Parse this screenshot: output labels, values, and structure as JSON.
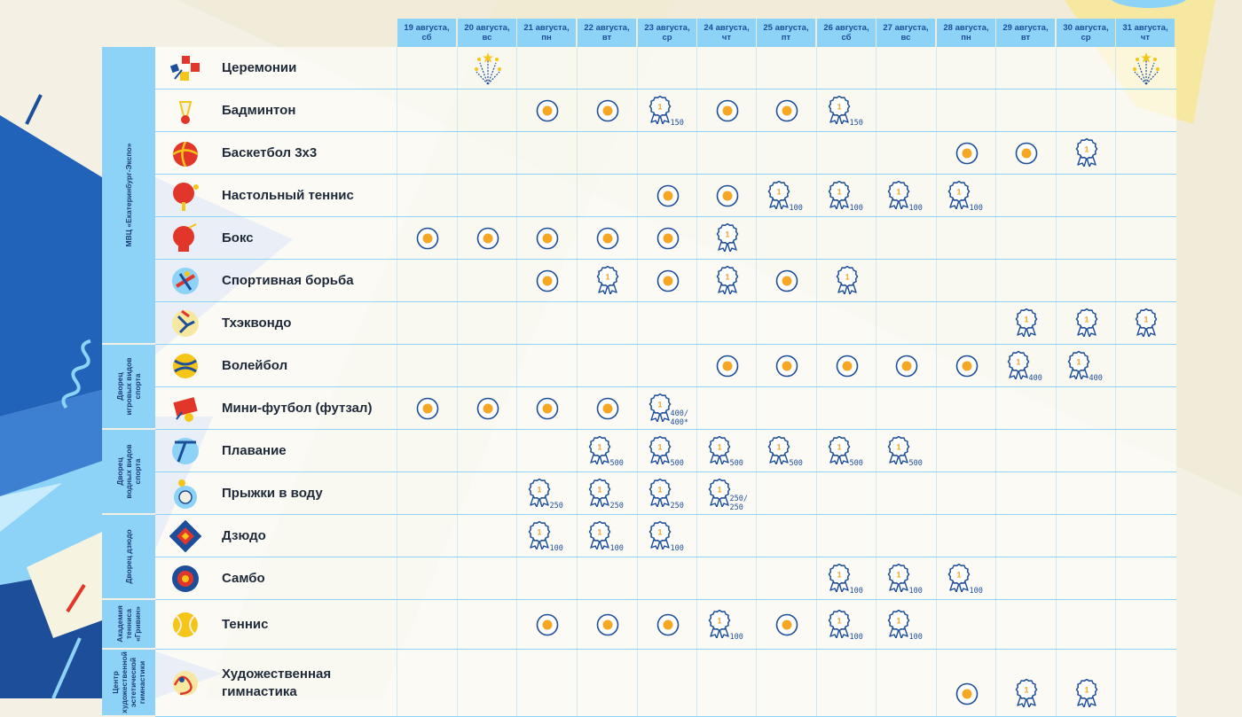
{
  "colors": {
    "header": "#8dd3f7",
    "dark_blue": "#1d4e99",
    "orange": "#f5a623",
    "text": "#1e2a3a"
  },
  "dates": [
    "19 августа,|сб",
    "20 августа,|вс",
    "21 августа,|пн",
    "22 августа,|вт",
    "23 августа,|ср",
    "24 августа,|чт",
    "25 августа,|пт",
    "26 августа,|сб",
    "27 августа,|вс",
    "28 августа,|пн",
    "29 августа,|вт",
    "30 августа,|ср",
    "31 августа,|чт"
  ],
  "venues": [
    {
      "name": "МВЦ «Екатеринбург-Экспо»",
      "lines": [
        "МВЦ «Екатеринбург-Экспо»"
      ],
      "rows": 7
    },
    {
      "name": "Дворец игровых видов спорта",
      "lines": [
        "Дворец",
        "игровых видов",
        "спорта"
      ],
      "rows": 2
    },
    {
      "name": "Дворец водных видов спорта",
      "lines": [
        "Дворец",
        "водных видов",
        "спорта"
      ],
      "rows": 2
    },
    {
      "name": "Дворец дзюдо",
      "lines": [
        "Дворец дзюдо"
      ],
      "rows": 2
    },
    {
      "name": "Академия тенниса «Гривин»",
      "lines": [
        "Академия",
        "тенниса",
        "«Гривин»"
      ],
      "rows": 1
    },
    {
      "name": "Центр художественной и эстетической гимнастики",
      "lines": [
        "Центр",
        "художественной",
        "эстетической",
        "гимнастики"
      ],
      "rows": 1
    }
  ],
  "sports": [
    {
      "name": "Церемонии",
      "icon": "ceremony-icon",
      "cells": [
        "",
        "c",
        "",
        "",
        "",
        "",
        "",
        "",
        "",
        "",
        "",
        "",
        "c"
      ]
    },
    {
      "name": "Бадминтон",
      "icon": "badminton-icon",
      "cells": [
        "",
        "",
        "d",
        "d",
        "m:150",
        "d",
        "d",
        "m:150",
        "",
        "",
        "",
        "",
        ""
      ]
    },
    {
      "name": "Баскетбол 3х3",
      "icon": "basketball-icon",
      "cells": [
        "",
        "",
        "",
        "",
        "",
        "",
        "",
        "",
        "",
        "d",
        "d",
        "m",
        ""
      ]
    },
    {
      "name": "Настольный теннис",
      "icon": "table-tennis-icon",
      "cells": [
        "",
        "",
        "",
        "",
        "d",
        "d",
        "m:100",
        "m:100",
        "m:100",
        "m:100",
        "",
        "",
        ""
      ]
    },
    {
      "name": "Бокс",
      "icon": "boxing-icon",
      "cells": [
        "d",
        "d",
        "d",
        "d",
        "d",
        "m",
        "",
        "",
        "",
        "",
        "",
        "",
        ""
      ]
    },
    {
      "name": "Спортивная борьба",
      "icon": "wrestling-icon",
      "cells": [
        "",
        "",
        "d",
        "m",
        "d",
        "m",
        "d",
        "m",
        "",
        "",
        "",
        "",
        ""
      ]
    },
    {
      "name": "Тхэквондо",
      "icon": "taekwondo-icon",
      "cells": [
        "",
        "",
        "",
        "",
        "",
        "",
        "",
        "",
        "",
        "",
        "m",
        "m",
        "m"
      ]
    },
    {
      "name": "Волейбол",
      "icon": "volleyball-icon",
      "cells": [
        "",
        "",
        "",
        "",
        "",
        "d",
        "d",
        "d",
        "d",
        "d",
        "m:400",
        "m:400",
        ""
      ]
    },
    {
      "name": "Мини-футбол (футзал)",
      "icon": "futsal-icon",
      "cells": [
        "d",
        "d",
        "d",
        "d",
        "m:400/|400*",
        "",
        "",
        "",
        "",
        "",
        "",
        "",
        ""
      ]
    },
    {
      "name": "Плавание",
      "icon": "swimming-icon",
      "cells": [
        "",
        "",
        "",
        "m:500",
        "m:500",
        "m:500",
        "m:500",
        "m:500",
        "m:500",
        "",
        "",
        "",
        ""
      ]
    },
    {
      "name": "Прыжки в воду",
      "icon": "diving-icon",
      "cells": [
        "",
        "",
        "m:250",
        "m:250",
        "m:250",
        "m:250/|250",
        "",
        "",
        "",
        "",
        "",
        "",
        ""
      ]
    },
    {
      "name": "Дзюдо",
      "icon": "judo-icon",
      "cells": [
        "",
        "",
        "m:100",
        "m:100",
        "m:100",
        "",
        "",
        "",
        "",
        "",
        "",
        "",
        ""
      ]
    },
    {
      "name": "Самбо",
      "icon": "sambo-icon",
      "cells": [
        "",
        "",
        "",
        "",
        "",
        "",
        "",
        "m:100",
        "m:100",
        "m:100",
        "",
        "",
        ""
      ]
    },
    {
      "name": "Теннис",
      "icon": "tennis-icon",
      "cells": [
        "",
        "",
        "d",
        "d",
        "d",
        "m:100",
        "d",
        "m:100",
        "m:100",
        "",
        "",
        "",
        ""
      ]
    },
    {
      "name": "Художественная гимнастика",
      "lines": [
        "Художественная",
        "гимнастика"
      ],
      "icon": "rhythmic-gymnastics-icon",
      "cells": [
        "",
        "",
        "",
        "",
        "",
        "",
        "",
        "",
        "",
        "d",
        "m",
        "m",
        ""
      ]
    }
  ],
  "medal_number": "1"
}
